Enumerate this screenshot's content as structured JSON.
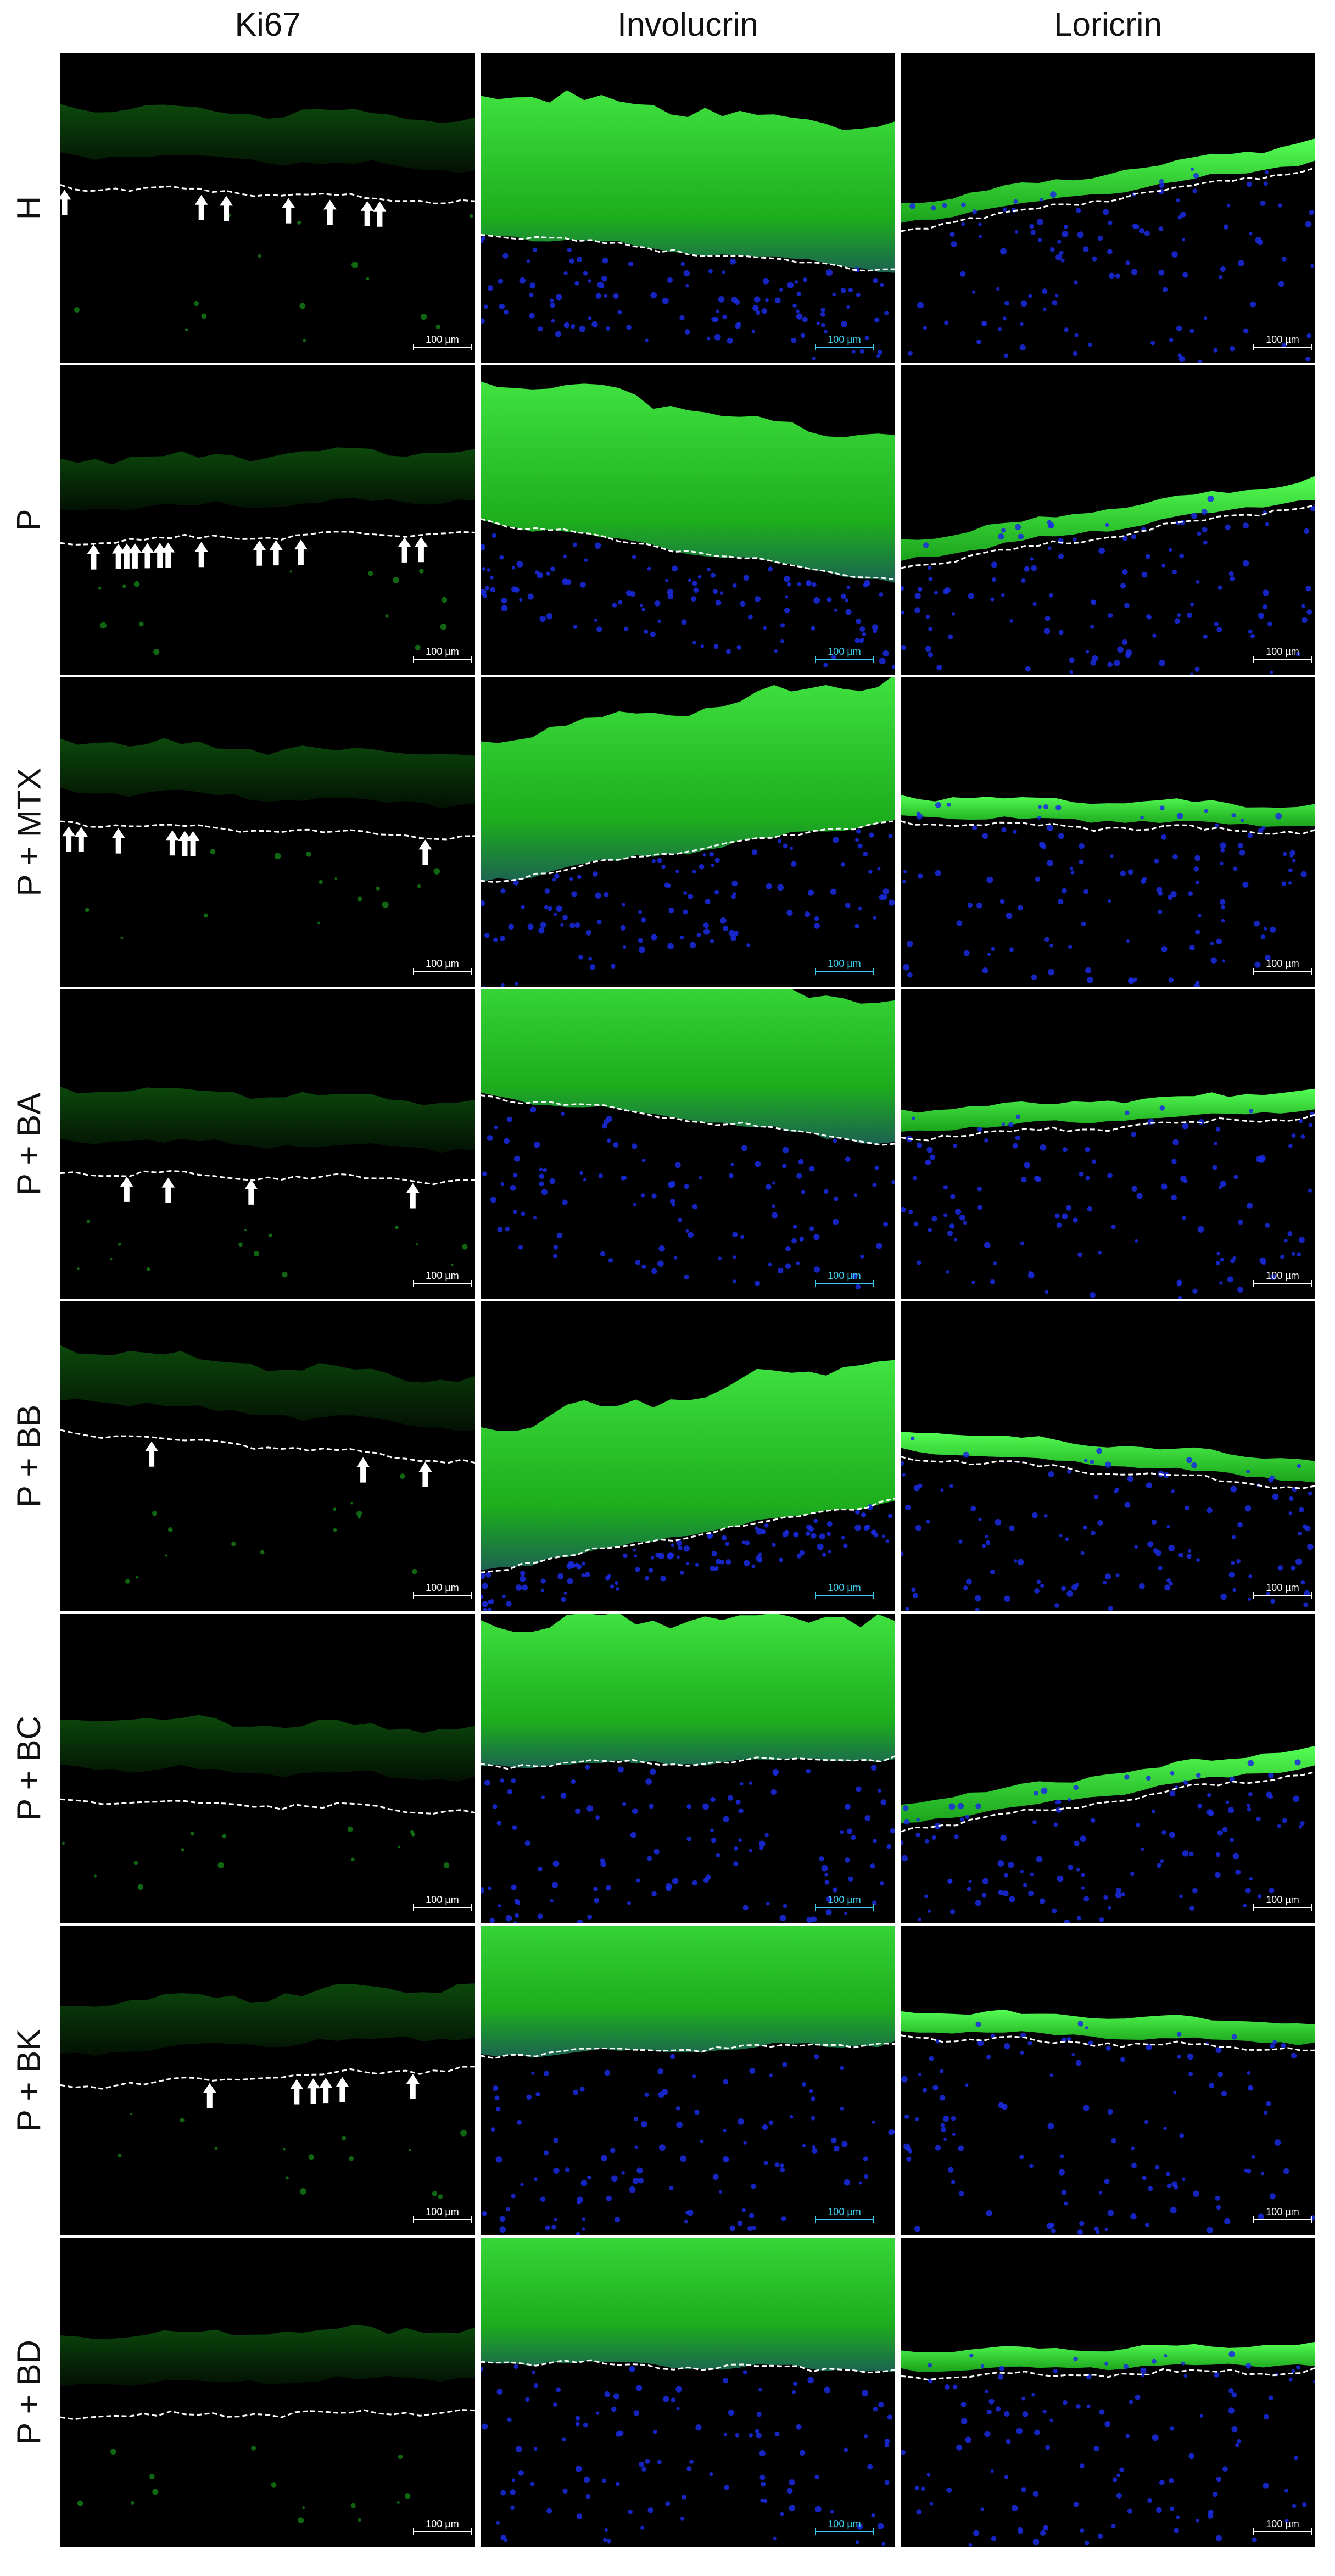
{
  "columns": [
    "Ki67",
    "Involucrin",
    "Loricrin"
  ],
  "rows": [
    "H",
    "P",
    "P + MTX",
    "P + BA",
    "P + BB",
    "P + BC",
    "P + BK",
    "P + BD"
  ],
  "scale_bar_label": "100 µm",
  "colors": {
    "background": "#000000",
    "epidermis_stain": "#22cc22",
    "nuclei_stain": "#1a2be0",
    "basement_line": "#ffffff",
    "arrow": "#ffffff",
    "scale_bar_ki67": "#ffffff",
    "scale_bar_involucrin": "#3ec9e6",
    "scale_bar_loricrin": "#ffffff"
  },
  "arrow_counts": {
    "H": 7,
    "P": 13,
    "P + MTX": 7,
    "P + BA": 4,
    "P + BB": 3,
    "P + BC": 0,
    "P + BK": 6,
    "P + BD": 0
  }
}
